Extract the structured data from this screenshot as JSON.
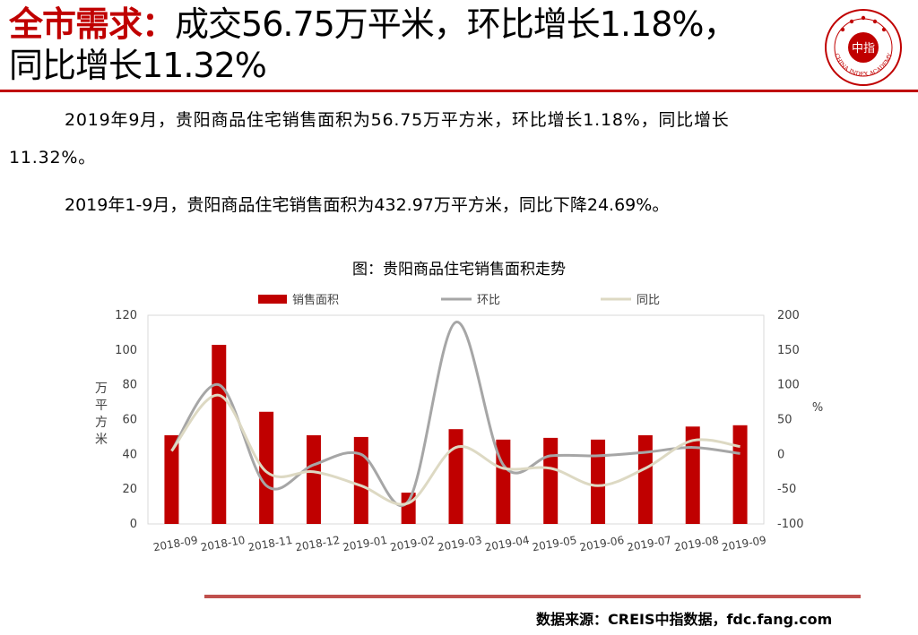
{
  "header": {
    "title_prefix": "全市需求：",
    "title_line1_rest": "成交56.75万平米，环比增长1.18%，",
    "title_line2": "同比增长11.32%"
  },
  "logo": {
    "icon": "china-index-academy-seal-icon",
    "center_text": "中指",
    "ring_text": "CHINA INDEX ACADEMY"
  },
  "body": {
    "para1_line1": "2019年9月，贵阳商品住宅销售面积为56.75万平方米，环比增长1.18%，同比增长",
    "para1_line2": "11.32%。",
    "para2": "2019年1-9月，贵阳商品住宅销售面积为432.97万平方米，同比下降24.69%。"
  },
  "chart_title": "图：贵阳商品住宅销售面积走势",
  "chart_data": {
    "type": "bar",
    "categories": [
      "2018-09",
      "2018-10",
      "2018-11",
      "2018-12",
      "2019-01",
      "2019-02",
      "2019-03",
      "2019-04",
      "2019-05",
      "2019-06",
      "2019-07",
      "2019-08",
      "2019-09"
    ],
    "series": [
      {
        "name": "销售面积",
        "type": "bar",
        "axis": "left",
        "color": "#c00000",
        "values": [
          51,
          103,
          64.5,
          51,
          50,
          18,
          54.5,
          48.5,
          49.5,
          48.5,
          51,
          56,
          56.75
        ]
      },
      {
        "name": "环比",
        "type": "line",
        "axis": "right",
        "color": "#a6a6a6",
        "values": [
          5,
          100,
          -45,
          -15,
          0,
          -67,
          190,
          -15,
          -2,
          -2,
          3,
          10,
          1.18
        ]
      },
      {
        "name": "同比",
        "type": "line",
        "axis": "right",
        "color": "#ddd9c3",
        "values": [
          5,
          85,
          -25,
          -25,
          -45,
          -70,
          10,
          -20,
          -20,
          -45,
          -20,
          20,
          11.32
        ]
      }
    ],
    "ylabel": "万平方米",
    "y2label": "%",
    "ylim": [
      0,
      120
    ],
    "y2lim": [
      -100,
      200
    ],
    "yticks": [
      0,
      20,
      40,
      60,
      80,
      100,
      120
    ],
    "y2ticks": [
      -100,
      -50,
      0,
      50,
      100,
      150,
      200
    ],
    "grid": false,
    "legend_position": "top"
  },
  "source": "数据来源：CREIS中指数据，fdc.fang.com"
}
